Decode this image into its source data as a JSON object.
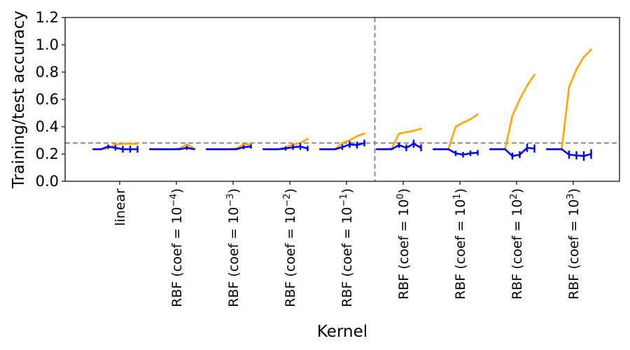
{
  "chart_data": {
    "type": "line",
    "title": "",
    "xlabel": "Kernel",
    "ylabel": "Training/test accuracy",
    "ylim": [
      0.0,
      1.2
    ],
    "yticks": [
      "0.0",
      "0.2",
      "0.4",
      "0.6",
      "0.8",
      "1.0",
      "1.2"
    ],
    "categories": [
      {
        "base": "linear",
        "sup": ""
      },
      {
        "base": "RBF (coef = 10",
        "sup": "−4",
        "tail": ")"
      },
      {
        "base": "RBF (coef = 10",
        "sup": "−3",
        "tail": ")"
      },
      {
        "base": "RBF (coef = 10",
        "sup": "−2",
        "tail": ")"
      },
      {
        "base": "RBF (coef = 10",
        "sup": "−1",
        "tail": ")"
      },
      {
        "base": "RBF (coef = 10",
        "sup": "0",
        "tail": ")"
      },
      {
        "base": "RBF (coef = 10",
        "sup": "1",
        "tail": ")"
      },
      {
        "base": "RBF (coef = 10",
        "sup": "2",
        "tail": ")"
      },
      {
        "base": "RBF (coef = 10",
        "sup": "3",
        "tail": ")"
      }
    ],
    "reference_line_y": 0.28,
    "separator_between_categories": [
      4,
      5
    ],
    "grid": false,
    "colors": {
      "train": "#FFA500",
      "test": "#0000FF",
      "reference": "#808080"
    },
    "series": [
      {
        "role": "train",
        "values": [
          [
            0.235,
            0.235,
            0.24,
            0.27,
            0.275,
            0.275,
            0.275
          ],
          [
            0.235,
            0.235,
            0.235,
            0.235,
            0.24,
            0.27,
            0.24
          ],
          [
            0.235,
            0.235,
            0.235,
            0.235,
            0.24,
            0.27,
            0.27
          ],
          [
            0.235,
            0.235,
            0.235,
            0.25,
            0.27,
            0.28,
            0.31
          ],
          [
            0.235,
            0.235,
            0.235,
            0.28,
            0.3,
            0.33,
            0.35
          ],
          [
            0.235,
            0.235,
            0.24,
            0.35,
            0.36,
            0.37,
            0.385
          ],
          [
            0.235,
            0.235,
            0.235,
            0.4,
            0.43,
            0.455,
            0.49
          ],
          [
            0.235,
            0.235,
            0.235,
            0.48,
            0.6,
            0.7,
            0.78
          ],
          [
            0.235,
            0.235,
            0.235,
            0.69,
            0.82,
            0.91,
            0.965
          ]
        ]
      },
      {
        "role": "test",
        "values": [
          [
            0.235,
            0.235,
            0.255,
            0.245,
            0.235,
            0.235,
            0.235
          ],
          [
            0.235,
            0.235,
            0.235,
            0.235,
            0.235,
            0.245,
            0.235
          ],
          [
            0.235,
            0.235,
            0.235,
            0.235,
            0.235,
            0.25,
            0.255
          ],
          [
            0.235,
            0.235,
            0.235,
            0.24,
            0.25,
            0.255,
            0.24
          ],
          [
            0.235,
            0.235,
            0.235,
            0.25,
            0.27,
            0.265,
            0.28
          ],
          [
            0.235,
            0.235,
            0.235,
            0.265,
            0.245,
            0.275,
            0.245
          ],
          [
            0.235,
            0.235,
            0.235,
            0.205,
            0.195,
            0.205,
            0.21
          ],
          [
            0.235,
            0.235,
            0.235,
            0.185,
            0.195,
            0.245,
            0.24
          ],
          [
            0.235,
            0.235,
            0.235,
            0.195,
            0.19,
            0.185,
            0.2
          ]
        ],
        "error": [
          [
            0,
            0,
            0.015,
            0.02,
            0.025,
            0.025,
            0.025
          ],
          [
            0,
            0,
            0,
            0,
            0,
            0.015,
            0
          ],
          [
            0,
            0,
            0,
            0,
            0,
            0.015,
            0.015
          ],
          [
            0,
            0,
            0,
            0.015,
            0.02,
            0.025,
            0.02
          ],
          [
            0,
            0,
            0,
            0.02,
            0.025,
            0.025,
            0.025
          ],
          [
            0,
            0,
            0,
            0.02,
            0.025,
            0.03,
            0.025
          ],
          [
            0,
            0,
            0,
            0.02,
            0.02,
            0.02,
            0.02
          ],
          [
            0,
            0,
            0,
            0.025,
            0.025,
            0.03,
            0.03
          ],
          [
            0,
            0,
            0,
            0.03,
            0.03,
            0.035,
            0.035
          ]
        ]
      }
    ]
  }
}
